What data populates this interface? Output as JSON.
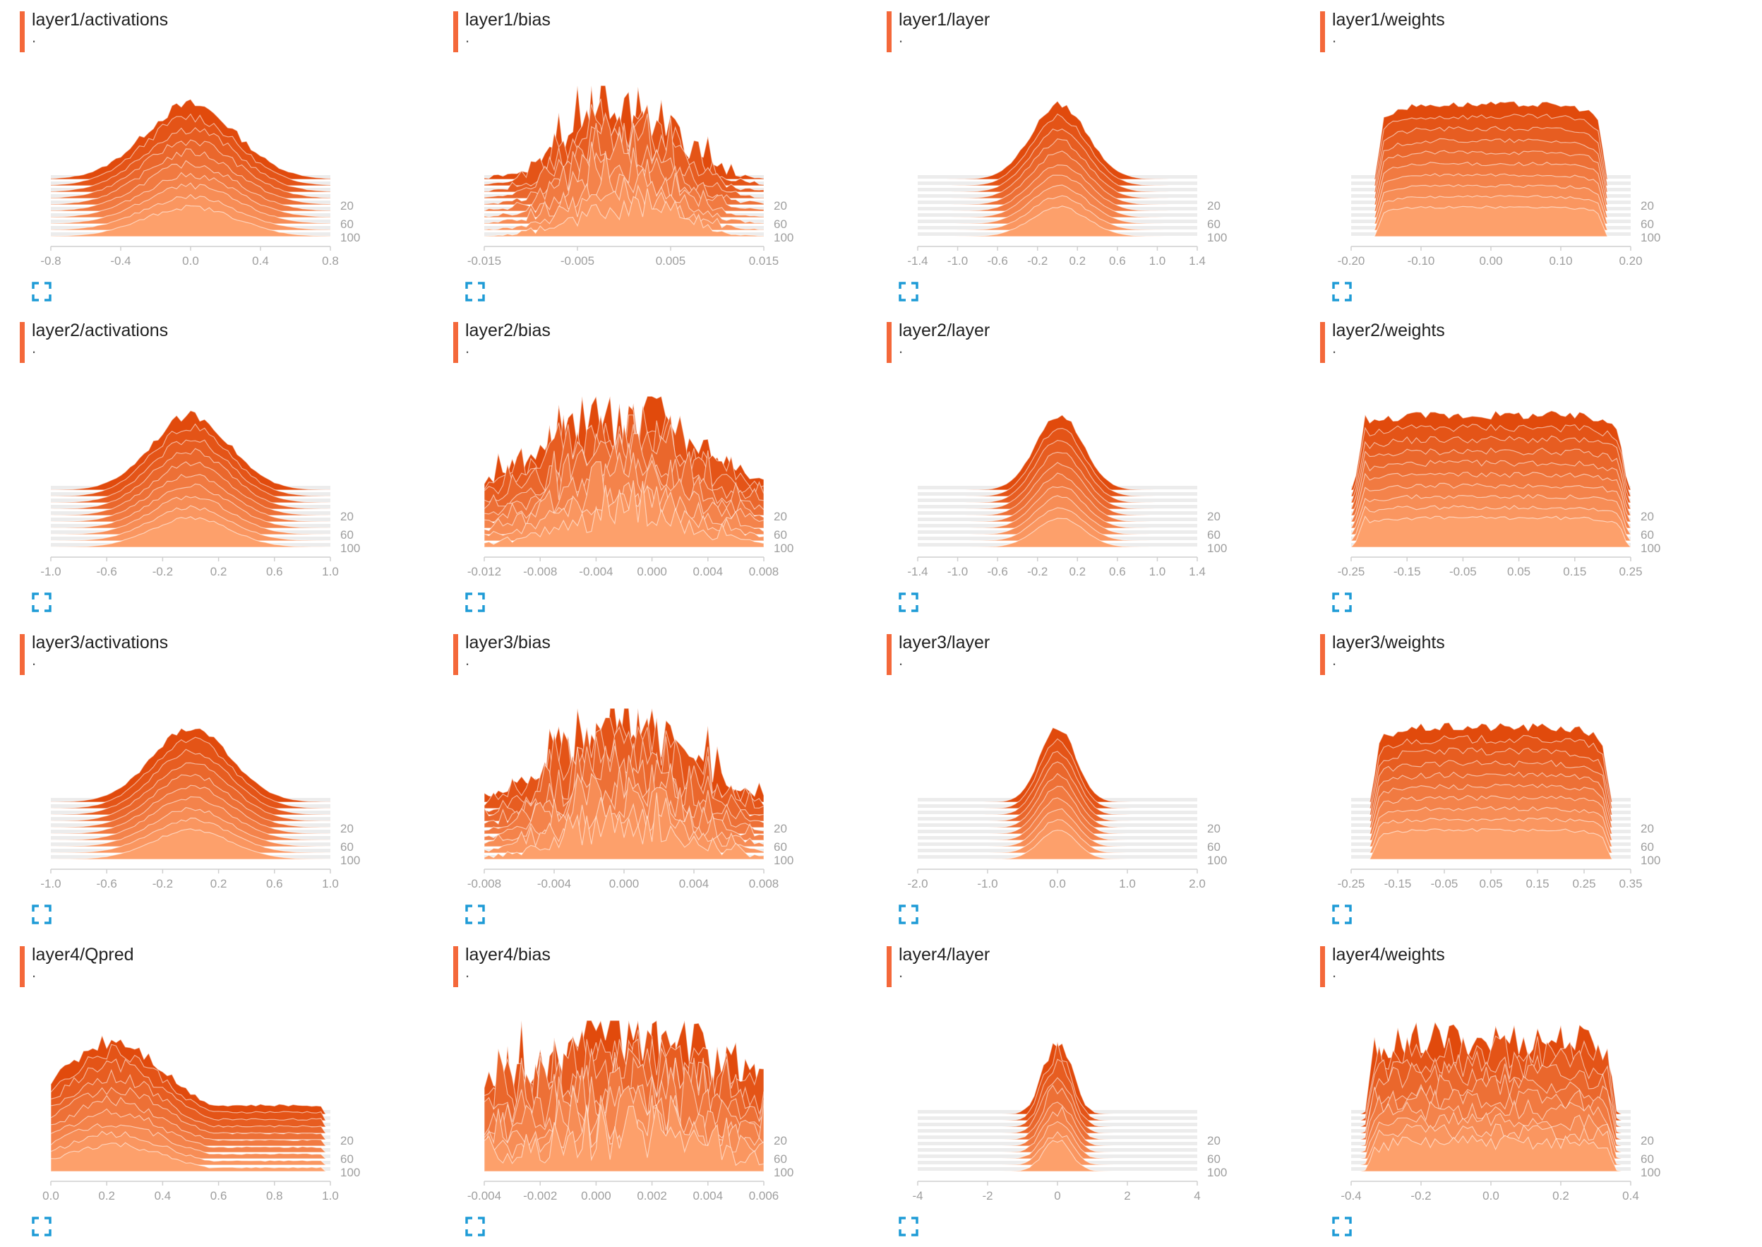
{
  "colors": {
    "accent": "#f4683a",
    "newest": "#e14a0c",
    "oldest": "#fda06b",
    "expand_icon": "#1e9bd6",
    "axis": "#cfcfcf"
  },
  "expand_icon_name": "fullscreen-expand-icon",
  "charts": [
    {
      "name": "layer1/activations",
      "subtitle": ".",
      "chart_data": {
        "type": "histogram-overlay",
        "shape": "normal",
        "spread": 0.33,
        "center": 0.0,
        "x_ticks": [
          "-0.8",
          "-0.4",
          "0.0",
          "0.4",
          "0.8"
        ],
        "xlim": [
          -0.8,
          0.8
        ],
        "y_ticks": [
          "20",
          "60",
          "100"
        ],
        "series_count": 10,
        "noise": 0.08
      }
    },
    {
      "name": "layer1/bias",
      "subtitle": ".",
      "chart_data": {
        "type": "histogram-overlay",
        "shape": "spiky",
        "spread": 0.35,
        "center": 0.0,
        "x_ticks": [
          "-0.015",
          "-0.005",
          "0.005",
          "0.015"
        ],
        "xlim": [
          -0.015,
          0.015
        ],
        "y_ticks": [
          "20",
          "60",
          "100"
        ],
        "series_count": 10,
        "noise": 0.45
      }
    },
    {
      "name": "layer1/layer",
      "subtitle": ".",
      "chart_data": {
        "type": "histogram-overlay",
        "shape": "normal",
        "spread": 0.2,
        "center": 0.07,
        "x_ticks": [
          "-1.4",
          "-1.0",
          "-0.6",
          "-0.2",
          "0.2",
          "0.6",
          "1.0",
          "1.4"
        ],
        "xlim": [
          -1.4,
          1.4
        ],
        "y_ticks": [
          "20",
          "60",
          "100"
        ],
        "series_count": 10,
        "noise": 0.05
      }
    },
    {
      "name": "layer1/weights",
      "subtitle": ".",
      "chart_data": {
        "type": "histogram-overlay",
        "shape": "uniform",
        "spread": 0.75,
        "center": 0.0,
        "x_ticks": [
          "-0.20",
          "-0.10",
          "0.00",
          "0.10",
          "0.20"
        ],
        "xlim": [
          -0.2,
          0.2
        ],
        "y_ticks": [
          "20",
          "60",
          "100"
        ],
        "series_count": 10,
        "noise": 0.04
      }
    },
    {
      "name": "layer2/activations",
      "subtitle": ".",
      "chart_data": {
        "type": "histogram-overlay",
        "shape": "normal",
        "spread": 0.28,
        "center": 0.0,
        "x_ticks": [
          "-1.0",
          "-0.6",
          "-0.2",
          "0.2",
          "0.6",
          "1.0"
        ],
        "xlim": [
          -1.0,
          1.0
        ],
        "y_ticks": [
          "20",
          "60",
          "100"
        ],
        "series_count": 10,
        "noise": 0.06
      }
    },
    {
      "name": "layer2/bias",
      "subtitle": ".",
      "chart_data": {
        "type": "histogram-overlay",
        "shape": "spiky",
        "spread": 0.5,
        "center": 0.0,
        "x_ticks": [
          "-0.012",
          "-0.008",
          "-0.004",
          "0.000",
          "0.004",
          "0.008"
        ],
        "xlim": [
          -0.012,
          0.008
        ],
        "y_ticks": [
          "20",
          "60",
          "100"
        ],
        "series_count": 10,
        "noise": 0.45
      }
    },
    {
      "name": "layer2/layer",
      "subtitle": ".",
      "chart_data": {
        "type": "histogram-overlay",
        "shape": "normal",
        "spread": 0.17,
        "center": 0.07,
        "x_ticks": [
          "-1.4",
          "-1.0",
          "-0.6",
          "-0.2",
          "0.2",
          "0.6",
          "1.0",
          "1.4"
        ],
        "xlim": [
          -1.4,
          1.4
        ],
        "y_ticks": [
          "20",
          "60",
          "100"
        ],
        "series_count": 10,
        "noise": 0.04
      }
    },
    {
      "name": "layer2/weights",
      "subtitle": ".",
      "chart_data": {
        "type": "histogram-overlay",
        "shape": "uniform",
        "spread": 0.9,
        "center": 0.0,
        "x_ticks": [
          "-0.25",
          "-0.15",
          "-0.05",
          "0.05",
          "0.15",
          "0.25"
        ],
        "xlim": [
          -0.25,
          0.25
        ],
        "y_ticks": [
          "20",
          "60",
          "100"
        ],
        "series_count": 10,
        "noise": 0.06
      }
    },
    {
      "name": "layer3/activations",
      "subtitle": ".",
      "chart_data": {
        "type": "histogram-overlay",
        "shape": "normal",
        "spread": 0.28,
        "center": 0.03,
        "x_ticks": [
          "-1.0",
          "-0.6",
          "-0.2",
          "0.2",
          "0.6",
          "1.0"
        ],
        "xlim": [
          -1.0,
          1.0
        ],
        "y_ticks": [
          "20",
          "60",
          "100"
        ],
        "series_count": 10,
        "noise": 0.05
      }
    },
    {
      "name": "layer3/bias",
      "subtitle": ".",
      "chart_data": {
        "type": "histogram-overlay",
        "shape": "spiky",
        "spread": 0.45,
        "center": 0.0,
        "x_ticks": [
          "-0.008",
          "-0.004",
          "0.000",
          "0.004",
          "0.008"
        ],
        "xlim": [
          -0.008,
          0.008
        ],
        "y_ticks": [
          "20",
          "60",
          "100"
        ],
        "series_count": 10,
        "noise": 0.5
      }
    },
    {
      "name": "layer3/layer",
      "subtitle": ".",
      "chart_data": {
        "type": "histogram-overlay",
        "shape": "normal",
        "spread": 0.13,
        "center": 0.01,
        "x_ticks": [
          "-2.0",
          "-1.0",
          "0.0",
          "1.0",
          "2.0"
        ],
        "xlim": [
          -2.0,
          2.0
        ],
        "y_ticks": [
          "20",
          "60",
          "100"
        ],
        "series_count": 10,
        "noise": 0.04
      }
    },
    {
      "name": "layer3/weights",
      "subtitle": ".",
      "chart_data": {
        "type": "histogram-overlay",
        "shape": "uniform",
        "spread": 0.78,
        "center": -0.06,
        "x_ticks": [
          "-0.25",
          "-0.15",
          "-0.05",
          "0.05",
          "0.15",
          "0.25",
          "0.35"
        ],
        "xlim": [
          -0.25,
          0.35
        ],
        "y_ticks": [
          "20",
          "60",
          "100"
        ],
        "series_count": 10,
        "noise": 0.06
      }
    },
    {
      "name": "layer4/Qpred",
      "subtitle": ".",
      "chart_data": {
        "type": "histogram-overlay",
        "shape": "skewed",
        "spread": 0.35,
        "center": -0.4,
        "x_ticks": [
          "0.0",
          "0.2",
          "0.4",
          "0.6",
          "0.8",
          "1.0"
        ],
        "xlim": [
          0.0,
          1.0
        ],
        "y_ticks": [
          "20",
          "60",
          "100"
        ],
        "series_count": 10,
        "noise": 0.12
      }
    },
    {
      "name": "layer4/bias",
      "subtitle": ".",
      "chart_data": {
        "type": "histogram-overlay",
        "shape": "spiky",
        "spread": 0.7,
        "center": 0.05,
        "x_ticks": [
          "-0.004",
          "-0.002",
          "0.000",
          "0.002",
          "0.004",
          "0.006"
        ],
        "xlim": [
          -0.004,
          0.006
        ],
        "y_ticks": [
          "20",
          "60",
          "100"
        ],
        "series_count": 10,
        "noise": 0.6
      }
    },
    {
      "name": "layer4/layer",
      "subtitle": ".",
      "chart_data": {
        "type": "histogram-overlay",
        "shape": "normal",
        "spread": 0.1,
        "center": 0.0,
        "x_ticks": [
          "-4",
          "-2",
          "0",
          "2",
          "4"
        ],
        "xlim": [
          -4,
          5
        ],
        "y_ticks": [
          "20",
          "60",
          "100"
        ],
        "series_count": 10,
        "noise": 0.15
      }
    },
    {
      "name": "layer4/weights",
      "subtitle": ".",
      "chart_data": {
        "type": "histogram-overlay",
        "shape": "uniform",
        "spread": 0.82,
        "center": 0.0,
        "x_ticks": [
          "-0.4",
          "-0.2",
          "0.0",
          "0.2",
          "0.4"
        ],
        "xlim": [
          -0.4,
          0.4
        ],
        "y_ticks": [
          "20",
          "60",
          "100"
        ],
        "series_count": 10,
        "noise": 0.25
      }
    }
  ]
}
